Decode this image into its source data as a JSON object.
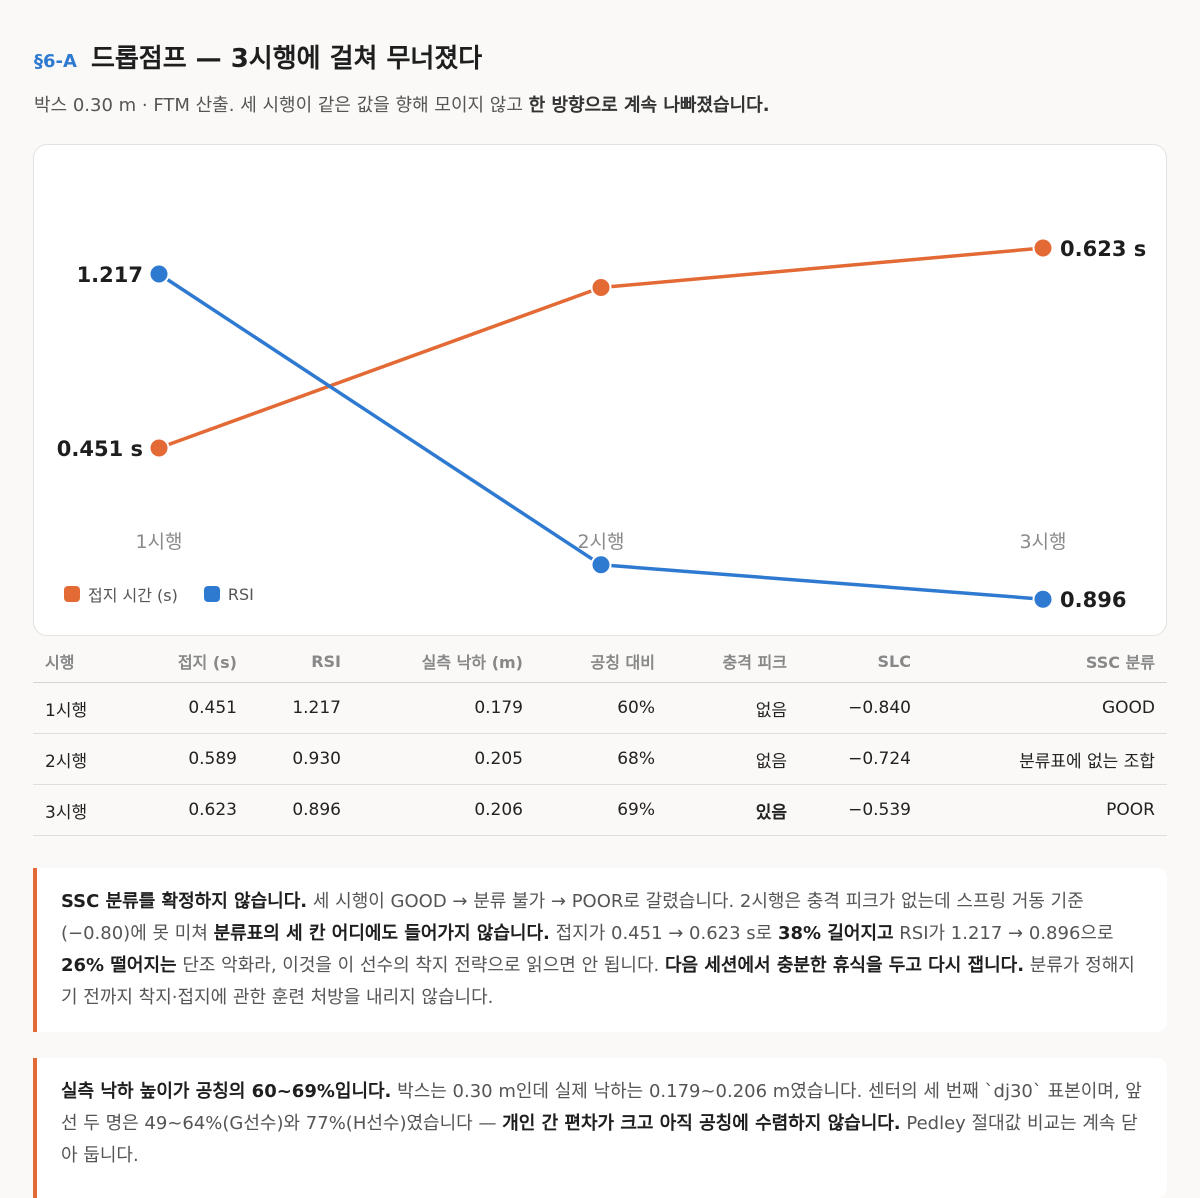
{
  "header": {
    "section": "§6-A",
    "title": "드롭점프 — 3시행에 걸쳐 무너졌다",
    "subtitle_normal": "박스 0.30 m · FTM 산출. 세 시행이 같은 값을 향해 모이지 않고 ",
    "subtitle_bold": "한 방향으로 계속 나빠졌습니다."
  },
  "chart_data": {
    "type": "line",
    "categories": [
      "1시행",
      "2시행",
      "3시행"
    ],
    "series": [
      {
        "name": "접지 시간 (s)",
        "values": [
          0.451,
          0.589,
          0.623
        ],
        "color": "#e36a35",
        "start_label": "0.451 s",
        "end_label": "0.623 s"
      },
      {
        "name": "RSI",
        "values": [
          1.217,
          0.93,
          0.896
        ],
        "color": "#2f7ad1",
        "start_label": "1.217",
        "end_label": "0.896"
      }
    ],
    "grid": false,
    "legend_position": "bottom-left"
  },
  "table": {
    "columns": [
      "시행",
      "접지 (s)",
      "RSI",
      "실측 낙하 (m)",
      "공칭 대비",
      "충격 피크",
      "SLC",
      "SSC 분류"
    ],
    "rows": [
      [
        "1시행",
        "0.451",
        "1.217",
        "0.179",
        "60%",
        "없음",
        "−0.840",
        "GOOD"
      ],
      [
        "2시행",
        "0.589",
        "0.930",
        "0.205",
        "68%",
        "없음",
        "−0.724",
        "분류표에 없는 조합"
      ],
      [
        "3시행",
        "0.623",
        "0.896",
        "0.206",
        "69%",
        "있음",
        "−0.539",
        "POOR"
      ]
    ]
  },
  "notes": {
    "n1": {
      "b1": "SSC 분류를 확정하지 않습니다.",
      "t1": " 세 시행이 GOOD → 분류 불가 → POOR로 갈렸습니다. 2시행은 충격 피크가 없는데 스프링 거동 기준(−0.80)에 못 미쳐 ",
      "b2": "분류표의 세 칸 어디에도 들어가지 않습니다.",
      "t2": " 접지가 0.451 → 0.623 s로 ",
      "b3": "38% 길어지고",
      "t3": " RSI가 1.217 → 0.896으로 ",
      "b4": "26% 떨어지는",
      "t4": " 단조 악화라, 이것을 이 선수의 착지 전략으로 읽으면 안 됩니다. ",
      "b5": "다음 세션에서 충분한 휴식을 두고 다시 잽니다.",
      "t5": " 분류가 정해지기 전까지 착지·접지에 관한 훈련 처방을 내리지 않습니다."
    },
    "n2": {
      "b1": "실측 낙하 높이가 공칭의 60~69%입니다.",
      "t1": " 박스는 0.30 m인데 실제 낙하는 0.179~0.206 m였습니다. 센터의 세 번째 `dj30` 표본이며, 앞선 두 명은 49~64%(G선수)와 77%(H선수)였습니다 — ",
      "b2": "개인 간 편차가 크고 아직 공칭에 수렴하지 않습니다.",
      "t2": " Pedley 절대값 비교는 계속 닫아 둡니다."
    }
  }
}
